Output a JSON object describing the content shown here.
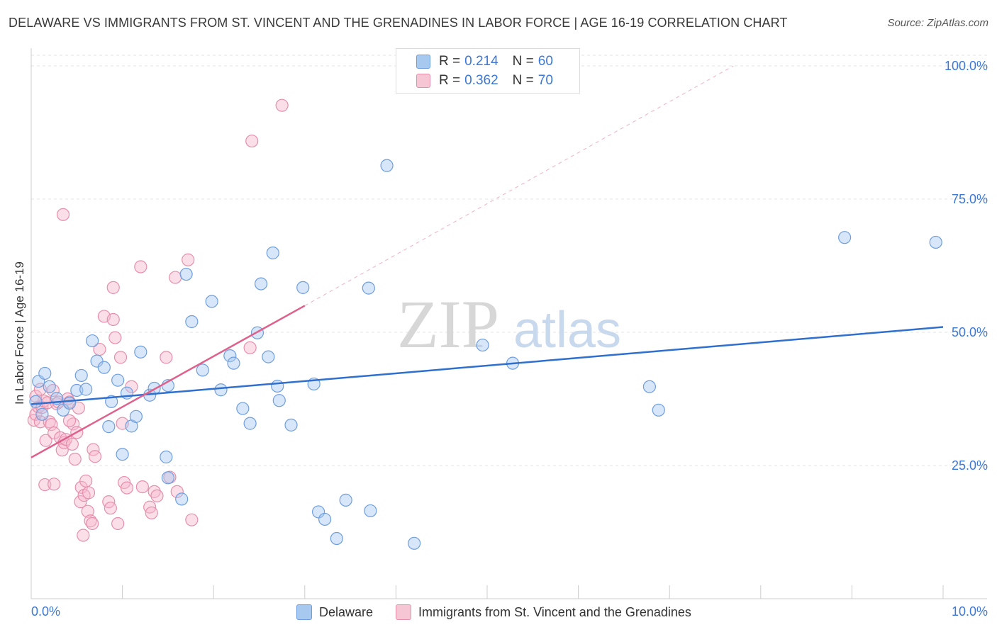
{
  "title": "DELAWARE VS IMMIGRANTS FROM ST. VINCENT AND THE GRENADINES IN LABOR FORCE | AGE 16-19 CORRELATION CHART",
  "source": "Source: ZipAtlas.com",
  "watermark": {
    "zip": "ZIP",
    "atlas": "atlas"
  },
  "legend": {
    "rows": [
      {
        "r_label": "R = ",
        "r_value": "0.214",
        "n_label": "N = ",
        "n_value": "60"
      },
      {
        "r_label": "R = ",
        "r_value": "0.362",
        "n_label": "N = ",
        "n_value": "70"
      }
    ]
  },
  "chart_data": {
    "type": "scatter",
    "title": "DELAWARE VS IMMIGRANTS FROM ST. VINCENT AND THE GRENADINES IN LABOR FORCE | AGE 16-19 CORRELATION CHART",
    "xlabel": "",
    "ylabel": "In Labor Force | Age 16-19",
    "xlim": [
      0,
      10
    ],
    "ylim": [
      0,
      102
    ],
    "x_tick_labels": [
      "0.0%",
      "10.0%"
    ],
    "y_ticks": [
      25,
      50,
      75,
      100
    ],
    "y_tick_labels": [
      "25.0%",
      "50.0%",
      "75.0%",
      "100.0%"
    ],
    "grid": true,
    "colors": {
      "delaware_fill": "#a7c8ef",
      "delaware_stroke": "#6f9ede",
      "delaware_line": "#2f6fce",
      "svg_fill": "#f6b9cb",
      "svg_stroke": "#e68fab",
      "svg_line": "#e0608c",
      "value_text": "#3b78d8",
      "grid": "#e3e3e3",
      "axis": "#cccccc"
    },
    "series": [
      {
        "name": "Delaware",
        "r": 0.214,
        "n": 60,
        "trend": {
          "x": [
            0,
            10
          ],
          "y": [
            36.5,
            51.0
          ],
          "dashed_extension": false
        },
        "points": [
          [
            0.08,
            40.8
          ],
          [
            0.15,
            42.3
          ],
          [
            0.2,
            39.8
          ],
          [
            0.28,
            37.6
          ],
          [
            0.35,
            35.4
          ],
          [
            0.42,
            36.7
          ],
          [
            0.5,
            39.1
          ],
          [
            0.55,
            41.9
          ],
          [
            0.6,
            39.3
          ],
          [
            0.67,
            48.4
          ],
          [
            0.72,
            44.6
          ],
          [
            0.8,
            43.4
          ],
          [
            0.88,
            37.0
          ],
          [
            0.95,
            41.0
          ],
          [
            0.85,
            32.3
          ],
          [
            1.0,
            27.1
          ],
          [
            1.05,
            38.6
          ],
          [
            1.1,
            32.4
          ],
          [
            1.15,
            34.2
          ],
          [
            1.2,
            46.3
          ],
          [
            1.3,
            38.2
          ],
          [
            1.35,
            39.5
          ],
          [
            1.5,
            40.0
          ],
          [
            1.48,
            26.6
          ],
          [
            1.5,
            22.7
          ],
          [
            1.65,
            18.7
          ],
          [
            1.7,
            60.9
          ],
          [
            1.76,
            52.0
          ],
          [
            1.88,
            42.9
          ],
          [
            1.98,
            55.8
          ],
          [
            2.08,
            39.2
          ],
          [
            2.18,
            45.6
          ],
          [
            2.22,
            44.2
          ],
          [
            2.32,
            35.7
          ],
          [
            2.4,
            32.9
          ],
          [
            2.48,
            49.9
          ],
          [
            2.52,
            59.1
          ],
          [
            2.6,
            45.4
          ],
          [
            2.65,
            64.9
          ],
          [
            2.7,
            39.9
          ],
          [
            2.72,
            37.2
          ],
          [
            2.85,
            32.6
          ],
          [
            2.98,
            58.4
          ],
          [
            3.1,
            40.3
          ],
          [
            3.15,
            16.3
          ],
          [
            3.22,
            14.9
          ],
          [
            3.35,
            11.3
          ],
          [
            3.45,
            18.5
          ],
          [
            3.72,
            16.5
          ],
          [
            3.7,
            58.3
          ],
          [
            3.9,
            81.3
          ],
          [
            4.2,
            10.4
          ],
          [
            4.95,
            47.6
          ],
          [
            5.28,
            44.2
          ],
          [
            6.78,
            39.8
          ],
          [
            6.88,
            35.4
          ],
          [
            8.92,
            67.8
          ],
          [
            9.92,
            66.9
          ],
          [
            0.05,
            37.0
          ],
          [
            0.12,
            34.6
          ]
        ]
      },
      {
        "name": "Immigrants from St. Vincent and the Grenadines",
        "r": 0.362,
        "n": 70,
        "trend": {
          "x": [
            0,
            3.0
          ],
          "y": [
            26.5,
            55.0
          ],
          "dashed_extension": true,
          "dashed_to": [
            7.7,
            100
          ]
        },
        "points": [
          [
            0.03,
            33.5
          ],
          [
            0.05,
            34.6
          ],
          [
            0.08,
            36.0
          ],
          [
            0.1,
            33.2
          ],
          [
            0.12,
            35.9
          ],
          [
            0.14,
            37.1
          ],
          [
            0.16,
            29.7
          ],
          [
            0.18,
            36.8
          ],
          [
            0.2,
            33.2
          ],
          [
            0.22,
            32.7
          ],
          [
            0.24,
            39.1
          ],
          [
            0.25,
            31.1
          ],
          [
            0.28,
            36.6
          ],
          [
            0.3,
            36.9
          ],
          [
            0.32,
            30.2
          ],
          [
            0.34,
            27.9
          ],
          [
            0.36,
            29.3
          ],
          [
            0.38,
            29.9
          ],
          [
            0.4,
            37.5
          ],
          [
            0.42,
            36.9
          ],
          [
            0.45,
            29.0
          ],
          [
            0.46,
            32.8
          ],
          [
            0.48,
            26.2
          ],
          [
            0.5,
            31.2
          ],
          [
            0.52,
            35.8
          ],
          [
            0.54,
            18.2
          ],
          [
            0.55,
            20.9
          ],
          [
            0.57,
            11.9
          ],
          [
            0.58,
            19.4
          ],
          [
            0.6,
            22.1
          ],
          [
            0.62,
            16.4
          ],
          [
            0.63,
            19.9
          ],
          [
            0.65,
            14.6
          ],
          [
            0.67,
            14.1
          ],
          [
            0.68,
            28.0
          ],
          [
            0.7,
            26.7
          ],
          [
            0.75,
            46.8
          ],
          [
            0.8,
            53.0
          ],
          [
            0.85,
            18.2
          ],
          [
            0.87,
            17.0
          ],
          [
            0.9,
            58.4
          ],
          [
            0.92,
            49.0
          ],
          [
            0.95,
            14.1
          ],
          [
            0.98,
            45.3
          ],
          [
            1.0,
            32.9
          ],
          [
            1.02,
            21.8
          ],
          [
            1.05,
            20.8
          ],
          [
            1.1,
            39.8
          ],
          [
            1.2,
            62.3
          ],
          [
            1.22,
            21.0
          ],
          [
            1.3,
            17.2
          ],
          [
            1.32,
            16.1
          ],
          [
            1.35,
            20.1
          ],
          [
            1.38,
            19.3
          ],
          [
            1.48,
            45.3
          ],
          [
            1.52,
            22.8
          ],
          [
            1.58,
            60.3
          ],
          [
            1.6,
            20.1
          ],
          [
            1.72,
            63.6
          ],
          [
            1.76,
            14.8
          ],
          [
            2.4,
            47.1
          ],
          [
            2.42,
            85.9
          ],
          [
            2.75,
            92.6
          ],
          [
            0.35,
            72.1
          ],
          [
            0.15,
            21.4
          ],
          [
            0.25,
            21.5
          ],
          [
            0.05,
            38.0
          ],
          [
            0.1,
            39.3
          ],
          [
            0.42,
            33.4
          ],
          [
            0.9,
            52.4
          ]
        ]
      }
    ]
  },
  "bottom_legend": {
    "items": [
      {
        "label": "Delaware"
      },
      {
        "label": "Immigrants from St. Vincent and the Grenadines"
      }
    ]
  }
}
